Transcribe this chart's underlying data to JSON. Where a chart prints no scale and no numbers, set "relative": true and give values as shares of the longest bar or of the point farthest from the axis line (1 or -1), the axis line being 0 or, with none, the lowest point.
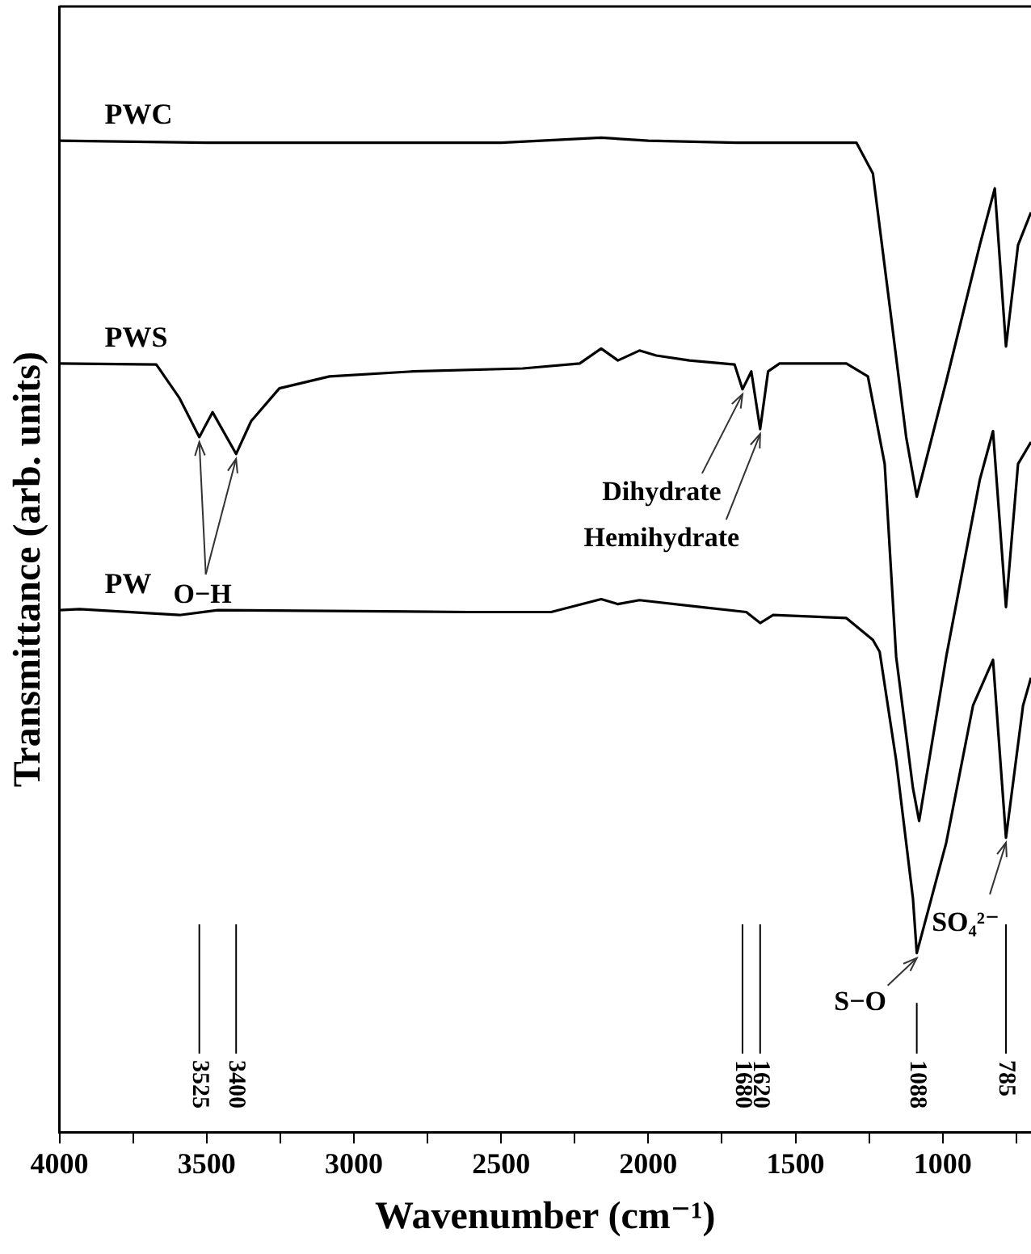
{
  "chart_data": {
    "type": "line",
    "relative": true,
    "xlabel": "Wavenumber (cm⁻¹)",
    "ylabel": "Transmittance (arb. units)",
    "xlim": [
      4000,
      700
    ],
    "xticks": [
      4000,
      {
        "value": 3750,
        "label": null
      },
      3500,
      {
        "value": 3250,
        "label": null
      },
      3000,
      {
        "value": 2750,
        "label": null
      },
      2500,
      {
        "value": 2250,
        "label": null
      },
      2000,
      {
        "value": 1750,
        "label": null
      },
      1500,
      {
        "value": 1250,
        "label": null
      },
      1000,
      {
        "value": 750,
        "label": null
      }
    ],
    "grid": false,
    "legend": false,
    "marker": "none",
    "line_style": "solid",
    "series": [
      {
        "name": "PWC",
        "color": "#000000",
        "x": [
          4000,
          3500,
          3000,
          2500,
          2160,
          2000,
          1700,
          1293,
          1237,
          1180,
          1124,
          1088,
          988,
          874,
          823,
          785,
          744,
          700
        ],
        "values": [
          0.997,
          0.995,
          0.995,
          0.995,
          1,
          0.997,
          0.995,
          0.995,
          0.964,
          0.831,
          0.699,
          0.639,
          0.755,
          0.892,
          0.949,
          0.79,
          0.892,
          0.925
        ]
      },
      {
        "name": "PWS",
        "color": "#000000",
        "x": [
          4000,
          3671,
          3592,
          3525,
          3480,
          3400,
          3349,
          3253,
          3083,
          2800,
          2426,
          2233,
          2160,
          2103,
          2030,
          1973,
          1860,
          1707,
          1680,
          1650,
          1620,
          1593,
          1554,
          1327,
          1254,
          1197,
          1158,
          1101,
          1080,
          988,
          874,
          829,
          785,
          744,
          700
        ],
        "values": [
          0.773,
          0.772,
          0.738,
          0.699,
          0.724,
          0.682,
          0.715,
          0.748,
          0.76,
          0.765,
          0.768,
          0.773,
          0.788,
          0.776,
          0.786,
          0.781,
          0.776,
          0.772,
          0.747,
          0.765,
          0.707,
          0.765,
          0.773,
          0.773,
          0.76,
          0.672,
          0.478,
          0.346,
          0.313,
          0.478,
          0.656,
          0.705,
          0.528,
          0.672,
          0.694
        ]
      },
      {
        "name": "PW",
        "color": "#000000",
        "x": [
          4000,
          3932,
          3592,
          3462,
          2613,
          2330,
          2160,
          2103,
          2030,
          1820,
          1667,
          1620,
          1576,
          1327,
          1237,
          1214,
          1158,
          1101,
          1088,
          988,
          897,
          829,
          785,
          727,
          700
        ],
        "values": [
          0.525,
          0.526,
          0.52,
          0.525,
          0.523,
          0.523,
          0.536,
          0.531,
          0.535,
          0.528,
          0.523,
          0.512,
          0.52,
          0.517,
          0.495,
          0.483,
          0.374,
          0.235,
          0.18,
          0.291,
          0.429,
          0.475,
          0.296,
          0.429,
          0.457
        ]
      }
    ],
    "ref_lines": [
      {
        "axis": "x",
        "value": 3525,
        "label": "3525"
      },
      {
        "axis": "x",
        "value": 3400,
        "label": "3400"
      },
      {
        "axis": "x",
        "value": 1680,
        "label": "1680"
      },
      {
        "axis": "x",
        "value": 1620,
        "label": "1620"
      },
      {
        "axis": "x",
        "value": 1088,
        "label": "1088"
      },
      {
        "axis": "x",
        "value": 785,
        "label": "785"
      }
    ],
    "annotations": [
      {
        "text": "O−H",
        "x": 3525,
        "y": 0.699
      },
      {
        "text": "Dihydrate",
        "x": 1680,
        "y": 0.747
      },
      {
        "text": "Hemihydrate",
        "x": 1620,
        "y": 0.707
      },
      {
        "text": "S−O",
        "x": 1088,
        "y": 0.18
      },
      {
        "text": "SO₄²⁻",
        "x": 785,
        "y": 0.296
      }
    ]
  }
}
